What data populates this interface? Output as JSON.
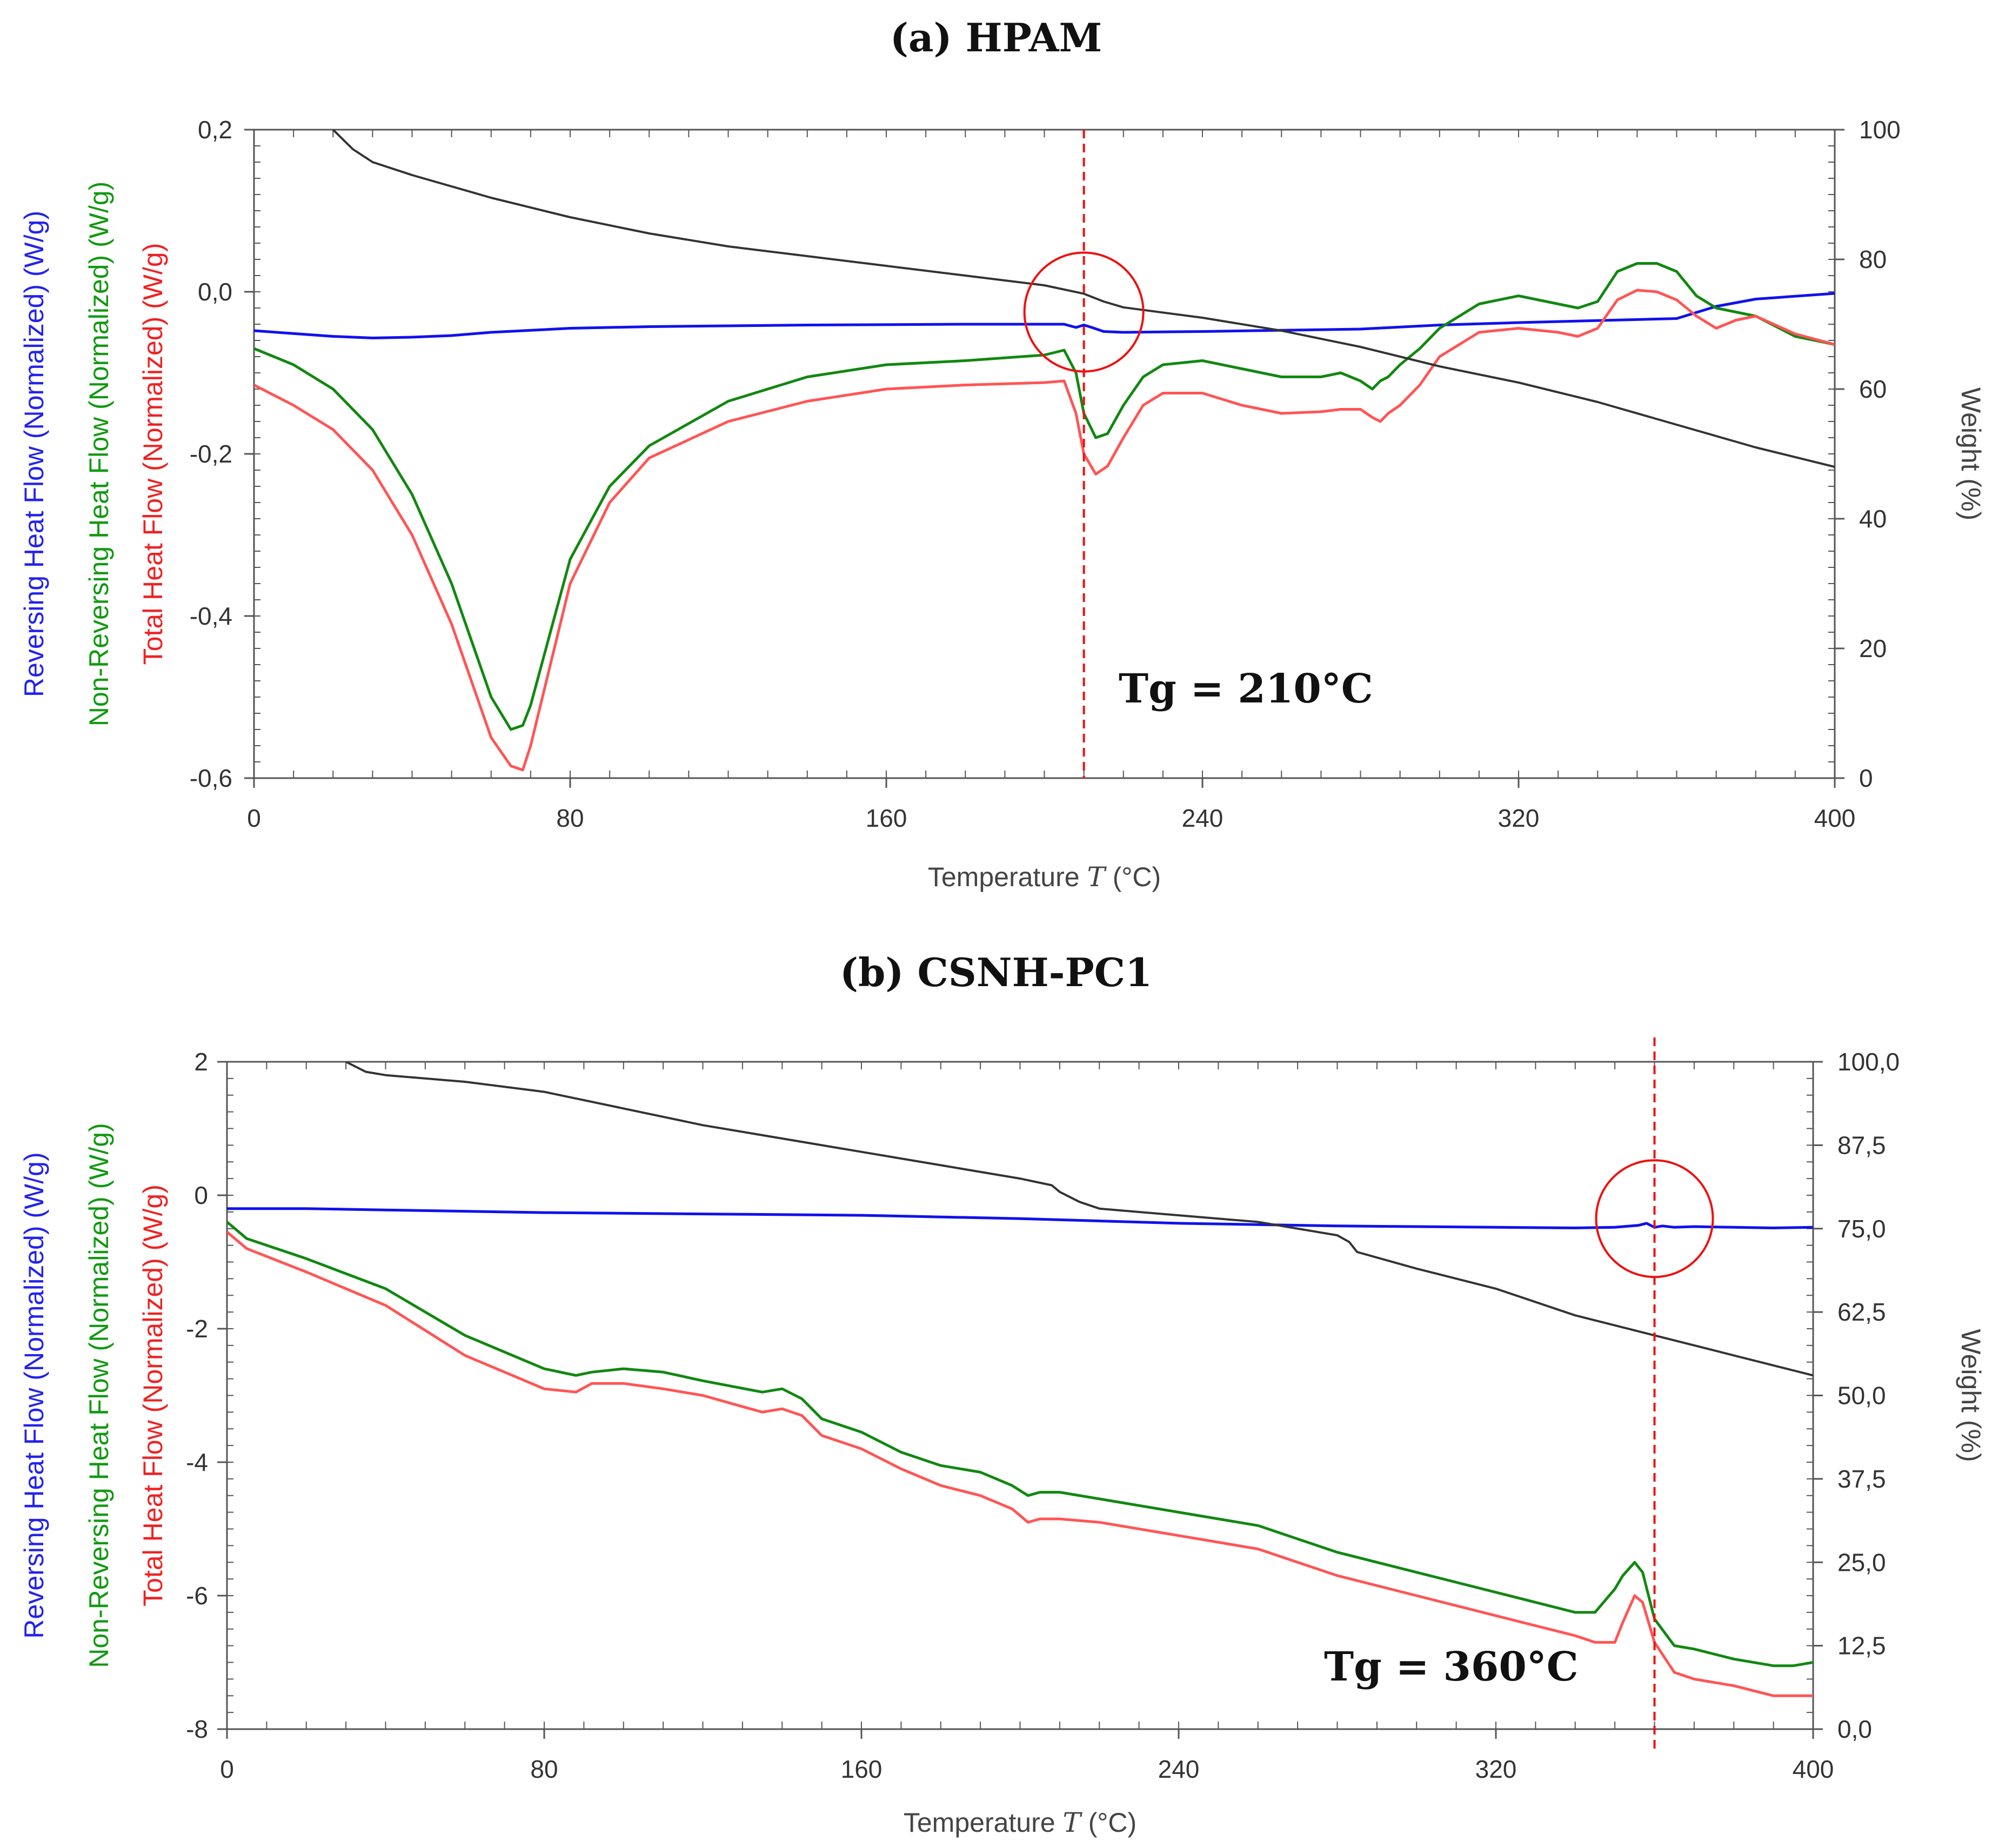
{
  "chart_data": [
    {
      "type": "line",
      "title": "(a) HPAM",
      "xlabel": "Temperature",
      "xlabel_symbol": "T",
      "xlabel_unit": "(°C)",
      "xlim": [
        0,
        400
      ],
      "x_ticks": [
        0,
        80,
        160,
        240,
        320,
        400
      ],
      "x_tick_labels": [
        "0",
        "80",
        "160",
        "240",
        "320",
        "400"
      ],
      "ylim_left": [
        -0.6,
        0.2
      ],
      "y_left_ticks": [
        -0.6,
        -0.4,
        -0.2,
        0.0,
        0.2
      ],
      "y_left_tick_labels": [
        "-0,6",
        "-0,4",
        "-0,2",
        "0,0",
        "0,2"
      ],
      "ylim_right": [
        0,
        100
      ],
      "y_right_ticks": [
        0,
        20,
        40,
        60,
        80,
        100
      ],
      "y_right_tick_labels": [
        "0",
        "20",
        "40",
        "60",
        "80",
        "100"
      ],
      "ylabels_left": [
        {
          "text": "Reversing Heat Flow (Normalized)  (W/g)",
          "color": "#2222ee"
        },
        {
          "text": "Non-Reversing Heat Flow (Normalized)  (W/g)",
          "color": "#119911"
        },
        {
          "text": "Total Heat Flow (Normalized)  (W/g)",
          "color": "#ee2222"
        }
      ],
      "ylabel_right": "Weight  (%)",
      "annotation": "Tg = 210°C",
      "tg_value": 210,
      "circle_center": [
        210,
        -0.025
      ],
      "series": [
        {
          "name": "Reversing Heat Flow",
          "axis": "left",
          "color": "#1111ee",
          "x": [
            0,
            20,
            30,
            40,
            50,
            60,
            80,
            100,
            140,
            180,
            205,
            208,
            210,
            212,
            215,
            220,
            240,
            280,
            300,
            320,
            360,
            370,
            380,
            400
          ],
          "y": [
            -0.048,
            -0.055,
            -0.057,
            -0.056,
            -0.054,
            -0.05,
            -0.045,
            -0.043,
            -0.041,
            -0.04,
            -0.04,
            -0.044,
            -0.041,
            -0.044,
            -0.049,
            -0.05,
            -0.049,
            -0.046,
            -0.041,
            -0.038,
            -0.033,
            -0.018,
            -0.009,
            -0.002
          ]
        },
        {
          "name": "Non-Reversing Heat Flow",
          "axis": "left",
          "color": "#118811",
          "x": [
            0,
            10,
            20,
            30,
            40,
            50,
            55,
            60,
            65,
            68,
            70,
            75,
            80,
            90,
            100,
            120,
            140,
            160,
            180,
            200,
            205,
            208,
            210,
            213,
            216,
            220,
            225,
            230,
            240,
            250,
            260,
            270,
            275,
            280,
            283,
            285,
            287,
            290,
            295,
            300,
            310,
            320,
            330,
            335,
            340,
            345,
            350,
            355,
            360,
            365,
            370,
            380,
            390,
            400
          ],
          "y": [
            -0.07,
            -0.09,
            -0.12,
            -0.17,
            -0.25,
            -0.36,
            -0.43,
            -0.5,
            -0.54,
            -0.535,
            -0.51,
            -0.42,
            -0.33,
            -0.24,
            -0.19,
            -0.135,
            -0.105,
            -0.09,
            -0.085,
            -0.078,
            -0.072,
            -0.1,
            -0.15,
            -0.18,
            -0.175,
            -0.14,
            -0.105,
            -0.09,
            -0.085,
            -0.095,
            -0.105,
            -0.105,
            -0.1,
            -0.11,
            -0.12,
            -0.11,
            -0.105,
            -0.09,
            -0.07,
            -0.045,
            -0.015,
            -0.005,
            -0.015,
            -0.02,
            -0.012,
            0.025,
            0.035,
            0.035,
            0.025,
            -0.005,
            -0.02,
            -0.03,
            -0.055,
            -0.065
          ]
        },
        {
          "name": "Total Heat Flow",
          "axis": "left",
          "color": "#ff5555",
          "x": [
            0,
            10,
            20,
            30,
            40,
            50,
            55,
            60,
            65,
            68,
            70,
            75,
            80,
            90,
            100,
            120,
            140,
            160,
            180,
            200,
            205,
            208,
            210,
            213,
            216,
            220,
            225,
            230,
            240,
            250,
            260,
            270,
            275,
            280,
            283,
            285,
            287,
            290,
            295,
            300,
            310,
            320,
            330,
            335,
            340,
            345,
            350,
            355,
            360,
            365,
            370,
            375,
            380,
            390,
            400
          ],
          "y": [
            -0.115,
            -0.14,
            -0.17,
            -0.22,
            -0.3,
            -0.41,
            -0.48,
            -0.55,
            -0.585,
            -0.59,
            -0.56,
            -0.46,
            -0.36,
            -0.26,
            -0.205,
            -0.16,
            -0.135,
            -0.12,
            -0.115,
            -0.112,
            -0.11,
            -0.15,
            -0.2,
            -0.225,
            -0.215,
            -0.18,
            -0.14,
            -0.125,
            -0.125,
            -0.14,
            -0.15,
            -0.148,
            -0.145,
            -0.145,
            -0.155,
            -0.16,
            -0.15,
            -0.14,
            -0.115,
            -0.08,
            -0.05,
            -0.045,
            -0.05,
            -0.055,
            -0.045,
            -0.01,
            0.002,
            0.0,
            -0.01,
            -0.03,
            -0.045,
            -0.035,
            -0.03,
            -0.052,
            -0.065
          ]
        },
        {
          "name": "Weight",
          "axis": "right",
          "color": "#333333",
          "x": [
            20,
            25,
            30,
            40,
            60,
            80,
            100,
            120,
            140,
            160,
            180,
            200,
            210,
            215,
            220,
            240,
            260,
            280,
            300,
            320,
            340,
            360,
            380,
            400
          ],
          "y": [
            100,
            97,
            95,
            93,
            89.5,
            86.5,
            84,
            82,
            80.5,
            79,
            77.5,
            76,
            74.7,
            73.5,
            72.6,
            71,
            69,
            66.5,
            63.5,
            61,
            58,
            54.5,
            51,
            48
          ]
        }
      ]
    },
    {
      "type": "line",
      "title": "(b) CSNH-PC1",
      "xlabel": "Temperature",
      "xlabel_symbol": "T",
      "xlabel_unit": "(°C)",
      "xlim": [
        0,
        400
      ],
      "x_ticks": [
        0,
        80,
        160,
        240,
        320,
        400
      ],
      "x_tick_labels": [
        "0",
        "80",
        "160",
        "240",
        "320",
        "400"
      ],
      "ylim_left": [
        -8,
        2
      ],
      "y_left_ticks": [
        -8,
        -6,
        -4,
        -2,
        0,
        2
      ],
      "y_left_tick_labels": [
        "-8",
        "-6",
        "-4",
        "-2",
        "0",
        "2"
      ],
      "ylim_right": [
        0,
        100
      ],
      "y_right_ticks": [
        0,
        12.5,
        25,
        37.5,
        50,
        62.5,
        75,
        87.5,
        100
      ],
      "y_right_tick_labels": [
        "0,0",
        "12,5",
        "25,0",
        "37,5",
        "50,0",
        "62,5",
        "75,0",
        "87,5",
        "100,0"
      ],
      "ylabels_left": [
        {
          "text": "Reversing Heat Flow (Normalized)  (W/g)",
          "color": "#2222ee"
        },
        {
          "text": "Non-Reversing Heat Flow (Normalized)  (W/g)",
          "color": "#119911"
        },
        {
          "text": "Total Heat Flow (Normalized)  (W/g)",
          "color": "#ee2222"
        }
      ],
      "ylabel_right": "Weight  (%)",
      "annotation": "Tg = 360°C",
      "tg_value": 360,
      "circle_center": [
        360,
        -0.35
      ],
      "series": [
        {
          "name": "Reversing Heat Flow",
          "axis": "left",
          "color": "#1111ee",
          "x": [
            0,
            20,
            40,
            60,
            80,
            120,
            160,
            200,
            240,
            280,
            300,
            320,
            340,
            350,
            356,
            358,
            360,
            362,
            365,
            370,
            380,
            390,
            400
          ],
          "y": [
            -0.2,
            -0.2,
            -0.22,
            -0.24,
            -0.26,
            -0.28,
            -0.3,
            -0.35,
            -0.42,
            -0.46,
            -0.47,
            -0.48,
            -0.49,
            -0.48,
            -0.45,
            -0.42,
            -0.48,
            -0.46,
            -0.48,
            -0.47,
            -0.48,
            -0.49,
            -0.48
          ]
        },
        {
          "name": "Non-Reversing Heat Flow",
          "axis": "left",
          "color": "#118811",
          "x": [
            0,
            5,
            20,
            40,
            60,
            80,
            88,
            92,
            100,
            110,
            120,
            135,
            140,
            145,
            150,
            160,
            170,
            180,
            190,
            198,
            202,
            205,
            210,
            220,
            240,
            260,
            280,
            300,
            320,
            340,
            345,
            350,
            352,
            355,
            357,
            360,
            365,
            370,
            380,
            390,
            395,
            400
          ],
          "y": [
            -0.4,
            -0.65,
            -0.95,
            -1.4,
            -2.1,
            -2.6,
            -2.7,
            -2.65,
            -2.6,
            -2.65,
            -2.78,
            -2.95,
            -2.9,
            -3.05,
            -3.35,
            -3.55,
            -3.85,
            -4.05,
            -4.15,
            -4.35,
            -4.5,
            -4.45,
            -4.45,
            -4.55,
            -4.75,
            -4.95,
            -5.35,
            -5.65,
            -5.95,
            -6.25,
            -6.25,
            -5.9,
            -5.7,
            -5.5,
            -5.65,
            -6.35,
            -6.75,
            -6.8,
            -6.95,
            -7.05,
            -7.05,
            -7.0
          ]
        },
        {
          "name": "Total Heat Flow",
          "axis": "left",
          "color": "#ff5555",
          "x": [
            0,
            5,
            20,
            40,
            60,
            80,
            88,
            92,
            100,
            110,
            120,
            135,
            140,
            145,
            150,
            160,
            170,
            180,
            190,
            198,
            202,
            205,
            210,
            220,
            240,
            260,
            280,
            300,
            320,
            340,
            345,
            350,
            352,
            355,
            357,
            360,
            365,
            370,
            380,
            390,
            395,
            400
          ],
          "y": [
            -0.55,
            -0.8,
            -1.15,
            -1.65,
            -2.4,
            -2.9,
            -2.95,
            -2.82,
            -2.82,
            -2.9,
            -3.0,
            -3.25,
            -3.2,
            -3.3,
            -3.6,
            -3.8,
            -4.1,
            -4.35,
            -4.5,
            -4.7,
            -4.9,
            -4.85,
            -4.85,
            -4.9,
            -5.1,
            -5.3,
            -5.7,
            -6.0,
            -6.3,
            -6.6,
            -6.7,
            -6.7,
            -6.4,
            -6.0,
            -6.1,
            -6.7,
            -7.15,
            -7.25,
            -7.35,
            -7.5,
            -7.5,
            -7.5
          ]
        },
        {
          "name": "Weight",
          "axis": "right",
          "color": "#333333",
          "x": [
            30,
            35,
            40,
            60,
            80,
            100,
            120,
            140,
            160,
            180,
            200,
            208,
            210,
            215,
            220,
            240,
            260,
            280,
            283,
            285,
            300,
            320,
            340,
            360,
            380,
            400
          ],
          "y": [
            100,
            98.5,
            98,
            97,
            95.5,
            93,
            90.5,
            88.5,
            86.5,
            84.5,
            82.5,
            81.5,
            80.5,
            79,
            78,
            77,
            76,
            74,
            73,
            71.5,
            69,
            66,
            62,
            59,
            56,
            53
          ]
        }
      ]
    }
  ]
}
